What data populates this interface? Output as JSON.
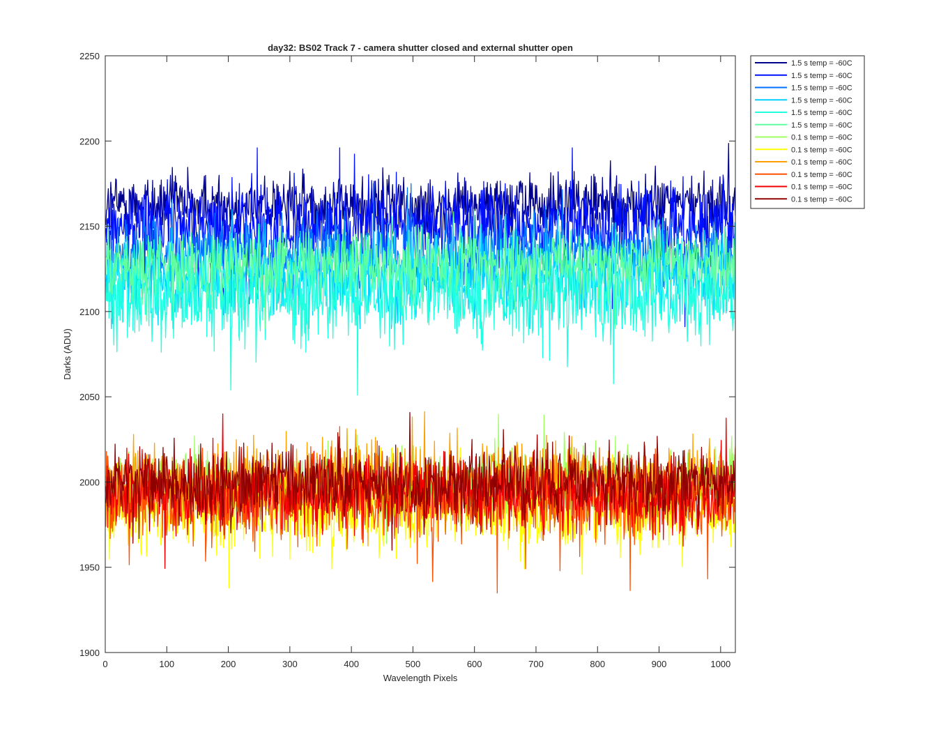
{
  "chart_data": {
    "type": "line",
    "title": "day32: BS02  Track 7 - camera shutter closed and external shutter open",
    "xlabel": "Wavelength Pixels",
    "ylabel": "Darks (ADU)",
    "xlim": [
      0,
      1024
    ],
    "ylim": [
      1900,
      2250
    ],
    "x_range": [
      1,
      1024
    ],
    "xticks": [
      "0",
      "100",
      "200",
      "300",
      "400",
      "500",
      "600",
      "700",
      "800",
      "900",
      "1000"
    ],
    "yticks": [
      "1900",
      "1950",
      "2000",
      "2050",
      "2100",
      "2150",
      "2200",
      "2250"
    ],
    "grid": false,
    "legend_location": "outside-top-right",
    "series_note": "12 noisy traces of ~1024 points each; centers and spreads estimated from the plot",
    "series": [
      {
        "name": "1.5 s temp = -60C",
        "color": "#00008F",
        "center": 2163,
        "spread": 9,
        "min": 2145,
        "max": 2204
      },
      {
        "name": "1.5 s temp = -60C",
        "color": "#0010FF",
        "center": 2150,
        "spread": 12,
        "min": 2080,
        "max": 2196
      },
      {
        "name": "1.5 s temp = -60C",
        "color": "#0070FF",
        "center": 2135,
        "spread": 10,
        "min": 2100,
        "max": 2175
      },
      {
        "name": "1.5 s temp = -60C",
        "color": "#00CFFF",
        "center": 2120,
        "spread": 12,
        "min": 2090,
        "max": 2160
      },
      {
        "name": "1.5 s temp = -60C",
        "color": "#20FFDF",
        "center": 2110,
        "spread": 14,
        "min": 2051,
        "max": 2155
      },
      {
        "name": "1.5 s temp = -60C",
        "color": "#60FFA0",
        "center": 2128,
        "spread": 10,
        "min": 2090,
        "max": 2160
      },
      {
        "name": "0.1 s temp = -60C",
        "color": "#A0FF60",
        "center": 1998,
        "spread": 10,
        "min": 1955,
        "max": 2041
      },
      {
        "name": "0.1 s temp = -60C",
        "color": "#FFFF00",
        "center": 1985,
        "spread": 12,
        "min": 1938,
        "max": 2020
      },
      {
        "name": "0.1 s temp = -60C",
        "color": "#FFA000",
        "center": 2000,
        "spread": 11,
        "min": 1950,
        "max": 2067
      },
      {
        "name": "0.1 s temp = -60C",
        "color": "#FF5000",
        "center": 1990,
        "spread": 12,
        "min": 1915,
        "max": 2035
      },
      {
        "name": "0.1 s temp = -60C",
        "color": "#F00000",
        "center": 1993,
        "spread": 11,
        "min": 1945,
        "max": 2040
      },
      {
        "name": "0.1 s temp = -60C",
        "color": "#900000",
        "center": 2000,
        "spread": 10,
        "min": 1960,
        "max": 2047
      }
    ]
  }
}
